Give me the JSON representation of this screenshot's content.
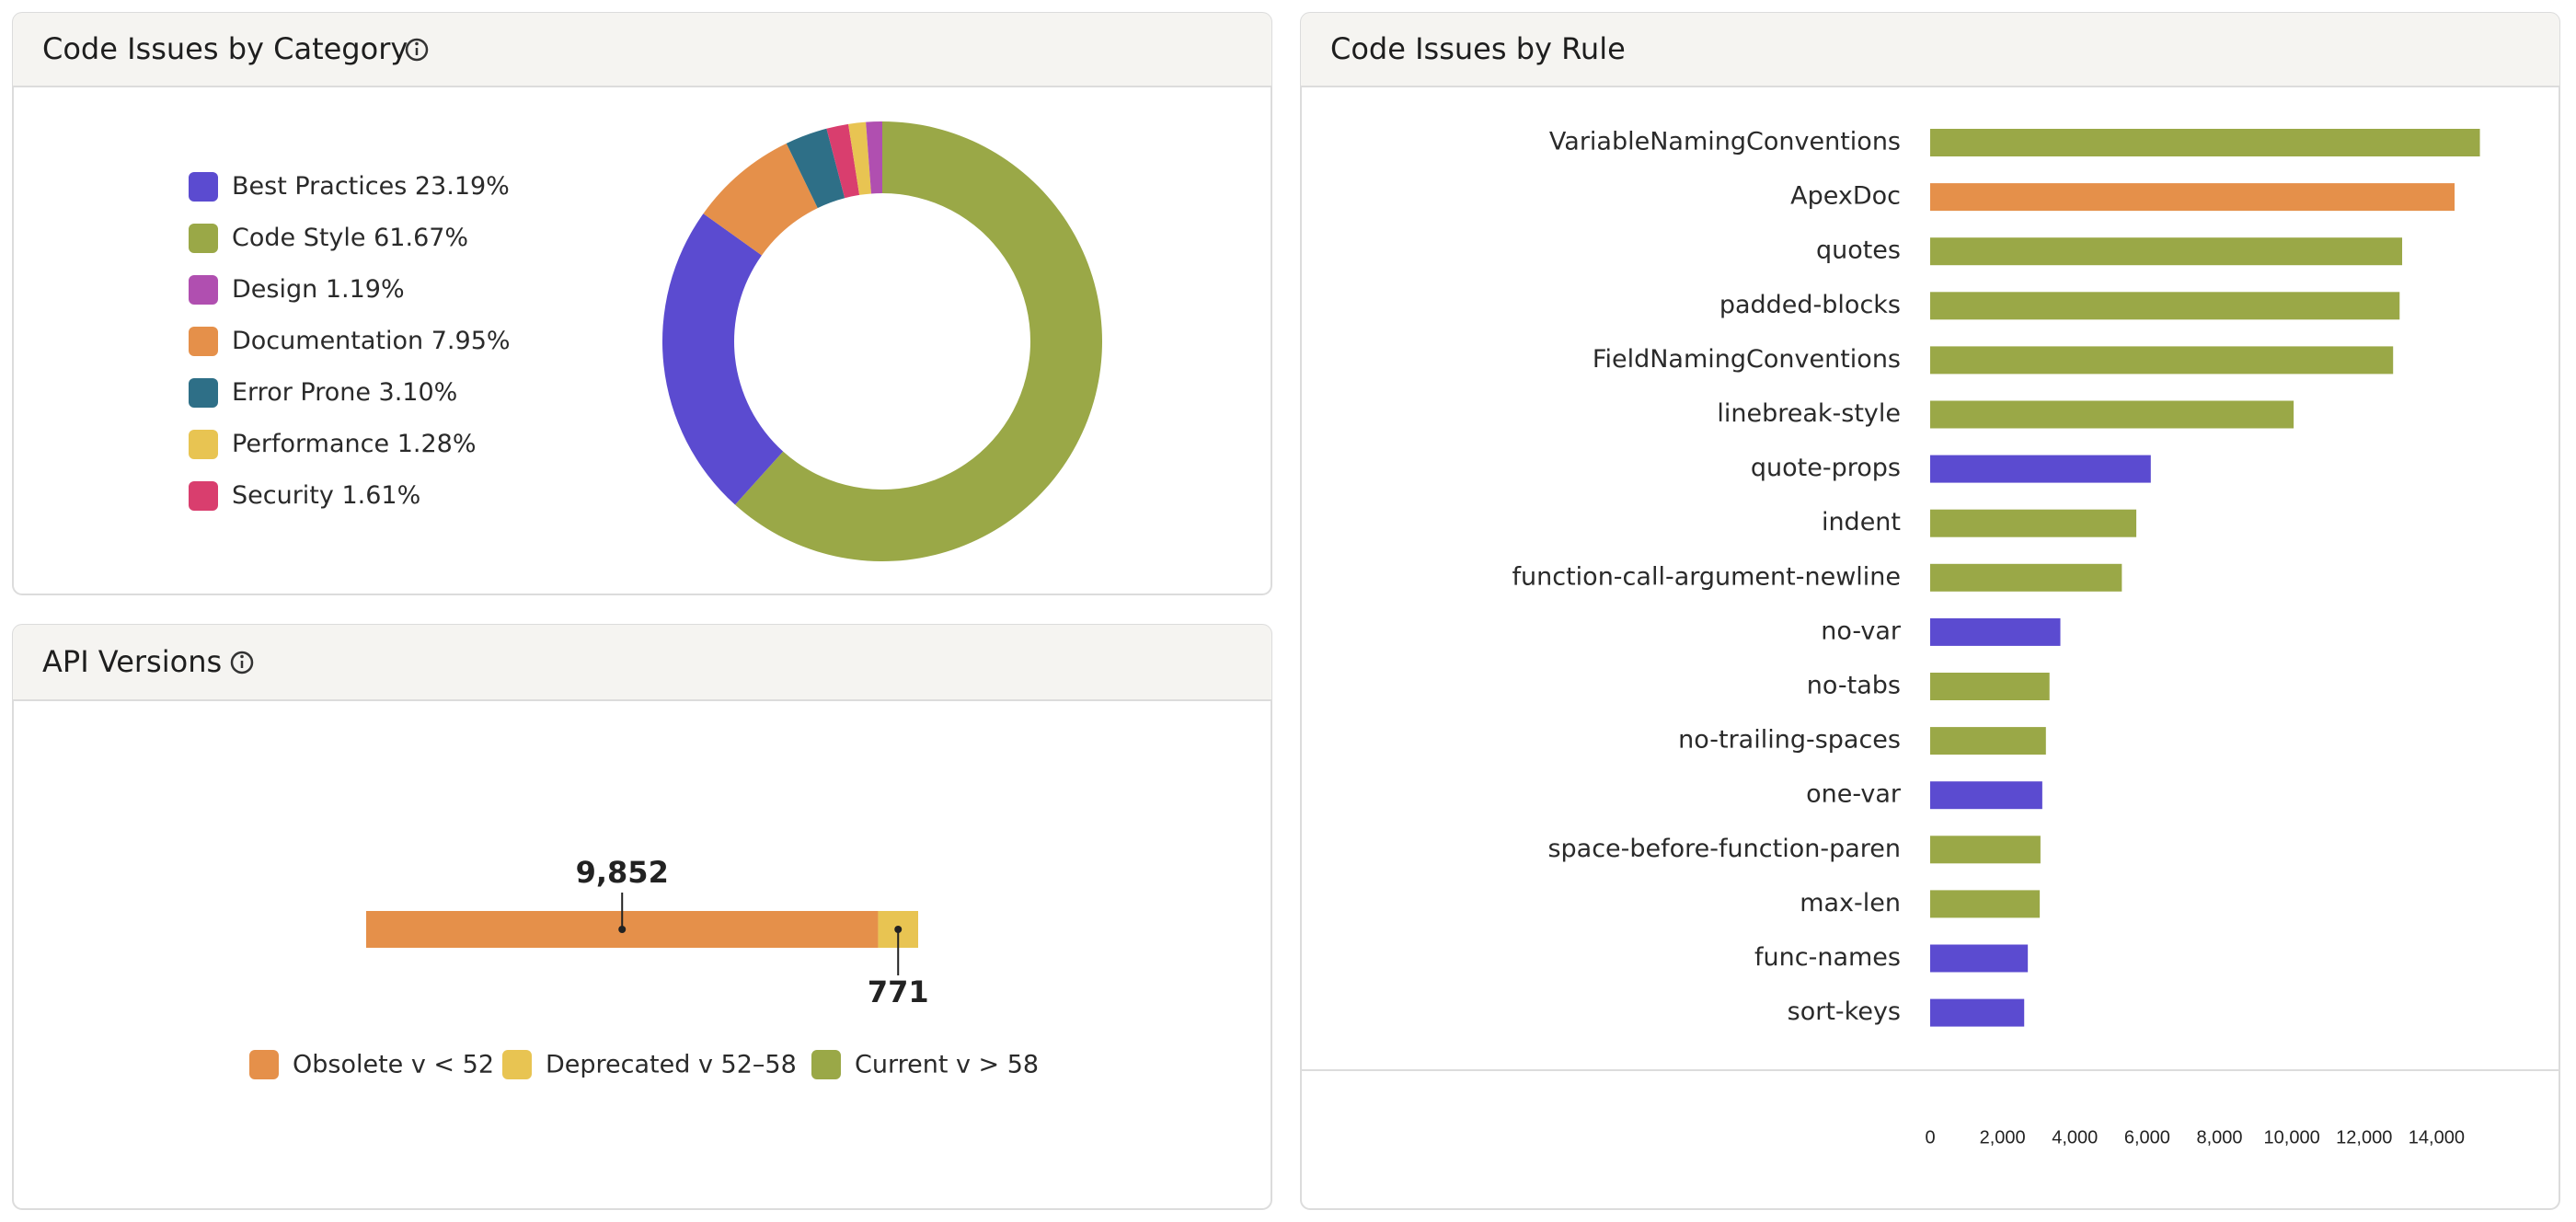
{
  "chart_data": [
    {
      "type": "pie",
      "title": "Code Issues by Category",
      "categories": [
        "Code Style",
        "Best Practices",
        "Documentation",
        "Error Prone",
        "Security",
        "Performance",
        "Design"
      ],
      "values": [
        61.67,
        23.19,
        7.95,
        3.1,
        1.61,
        1.28,
        1.19
      ],
      "value_labels": [
        "61.67%",
        "23.19%",
        "7.95%",
        "3.10%",
        "1.61%",
        "1.28%",
        "1.19%"
      ],
      "colors": [
        "#9aa847",
        "#5b4bd0",
        "#e5904a",
        "#2e6f87",
        "#d93e6e",
        "#e8c452",
        "#b04fb0"
      ]
    },
    {
      "type": "stacked-bar",
      "title": "API Versions",
      "series": [
        {
          "name": "Obsolete v < 52",
          "color": "#e5904a",
          "values": [
            9852
          ],
          "value_labels": [
            "9,852"
          ]
        },
        {
          "name": "Deprecated v 52–58",
          "color": "#e8c452",
          "values": [
            771
          ],
          "value_labels": [
            "771"
          ]
        },
        {
          "name": "Current v > 58",
          "color": "#9aa847",
          "values": [
            0
          ]
        }
      ]
    },
    {
      "type": "hbar",
      "title": "Code Issues by Rule",
      "categories": [
        "VariableNamingConventions",
        "ApexDoc",
        "quotes",
        "padded-blocks",
        "FieldNamingConventions",
        "linebreak-style",
        "quote-props",
        "indent",
        "function-call-argument-newline",
        "no-var",
        "no-tabs",
        "no-trailing-spaces",
        "one-var",
        "space-before-function-paren",
        "max-len",
        "func-names",
        "sort-keys"
      ],
      "values": [
        15200,
        14500,
        13050,
        12980,
        12800,
        10050,
        6100,
        5700,
        5300,
        3600,
        3300,
        3200,
        3100,
        3050,
        3030,
        2700,
        2600
      ],
      "colors": [
        "#9aa847",
        "#e5904a",
        "#9aa847",
        "#9aa847",
        "#9aa847",
        "#9aa847",
        "#5b4bd0",
        "#9aa847",
        "#9aa847",
        "#5b4bd0",
        "#9aa847",
        "#9aa847",
        "#5b4bd0",
        "#9aa847",
        "#9aa847",
        "#5b4bd0",
        "#5b4bd0"
      ],
      "xlim": [
        0,
        16000
      ],
      "xticks": [
        0,
        {
          "value": 2000,
          "label": "2,000"
        },
        {
          "value": 4000,
          "label": "4,000"
        },
        {
          "value": 6000,
          "label": "6,000"
        },
        {
          "value": 8000,
          "label": "8,000"
        },
        {
          "value": 10000,
          "label": "10,000"
        },
        {
          "value": 12000,
          "label": "12,000"
        },
        {
          "value": 14000,
          "label": "14,000"
        }
      ]
    }
  ]
}
